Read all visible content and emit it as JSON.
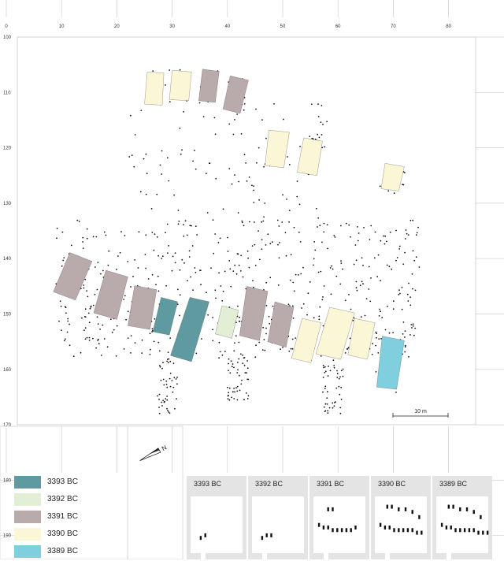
{
  "axes": {
    "x_ticks": [
      "0",
      "10",
      "20",
      "30",
      "40",
      "50",
      "60",
      "70",
      "80"
    ],
    "y_ticks": [
      "100",
      "110",
      "120",
      "130",
      "140",
      "150",
      "160",
      "170",
      "180",
      "190"
    ]
  },
  "scale_bar": {
    "label": "10 m"
  },
  "north_arrow": {
    "label": "N"
  },
  "colors": {
    "3393 BC": "#5f9aa0",
    "3392 BC": "#e3efd5",
    "3391 BC": "#b9aaac",
    "3390 BC": "#fbf6d6",
    "3389 BC": "#7fcfde"
  },
  "legend": [
    {
      "label": "3393 BC",
      "color": "#5f9aa0"
    },
    {
      "label": "3392 BC",
      "color": "#e3efd5"
    },
    {
      "label": "3391 BC",
      "color": "#b9aaac"
    },
    {
      "label": "3390 BC",
      "color": "#fbf6d6"
    },
    {
      "label": "3389 BC",
      "color": "#7fcfde"
    }
  ],
  "phases": [
    {
      "label": "3393 BC"
    },
    {
      "label": "3392 BC"
    },
    {
      "label": "3391 BC"
    },
    {
      "label": "3390 BC"
    },
    {
      "label": "3389 BC"
    }
  ],
  "houses": [
    {
      "phase": "3390 BC",
      "corners": [
        [
          25.5,
          106.3
        ],
        [
          28.5,
          106.5
        ],
        [
          28.2,
          112.3
        ],
        [
          25.0,
          112.1
        ]
      ]
    },
    {
      "phase": "3390 BC",
      "corners": [
        [
          30.0,
          106.0
        ],
        [
          33.5,
          106.3
        ],
        [
          33.0,
          111.5
        ],
        [
          29.5,
          111.3
        ]
      ]
    },
    {
      "phase": "3391 BC",
      "corners": [
        [
          35.5,
          105.8
        ],
        [
          38.5,
          106.2
        ],
        [
          37.8,
          111.8
        ],
        [
          34.8,
          111.5
        ]
      ]
    },
    {
      "phase": "3391 BC",
      "corners": [
        [
          40.5,
          107.0
        ],
        [
          43.8,
          107.8
        ],
        [
          42.3,
          113.8
        ],
        [
          39.2,
          113.0
        ]
      ]
    },
    {
      "phase": "3390 BC",
      "corners": [
        [
          47.5,
          116.8
        ],
        [
          51.2,
          117.2
        ],
        [
          50.2,
          123.6
        ],
        [
          46.8,
          123.2
        ]
      ]
    },
    {
      "phase": "3390 BC",
      "corners": [
        [
          53.8,
          118.2
        ],
        [
          57.2,
          118.8
        ],
        [
          56.2,
          125.0
        ],
        [
          52.6,
          124.4
        ]
      ]
    },
    {
      "phase": "3390 BC",
      "corners": [
        [
          68.5,
          122.8
        ],
        [
          72.0,
          123.4
        ],
        [
          71.0,
          127.8
        ],
        [
          67.8,
          127.4
        ]
      ]
    },
    {
      "phase": "3391 BC",
      "corners": [
        [
          11.5,
          138.9
        ],
        [
          15.5,
          140.5
        ],
        [
          12.5,
          147.5
        ],
        [
          8.5,
          146.0
        ]
      ]
    },
    {
      "phase": "3391 BC",
      "corners": [
        [
          18.0,
          142.1
        ],
        [
          22.0,
          143.3
        ],
        [
          20.0,
          151.0
        ],
        [
          15.8,
          149.8
        ]
      ]
    },
    {
      "phase": "3391 BC",
      "corners": [
        [
          23.2,
          144.9
        ],
        [
          27.2,
          145.6
        ],
        [
          26.0,
          152.8
        ],
        [
          22.0,
          152.1
        ]
      ]
    },
    {
      "phase": "3393 BC",
      "corners": [
        [
          28.0,
          147.0
        ],
        [
          31.0,
          147.8
        ],
        [
          29.5,
          153.8
        ],
        [
          26.5,
          153.2
        ]
      ]
    },
    {
      "phase": "3393 BC",
      "corners": [
        [
          33.2,
          147.0
        ],
        [
          36.7,
          147.8
        ],
        [
          33.5,
          158.6
        ],
        [
          29.7,
          157.5
        ]
      ]
    },
    {
      "phase": "3392 BC",
      "corners": [
        [
          39.0,
          148.5
        ],
        [
          42.0,
          149.3
        ],
        [
          40.8,
          154.4
        ],
        [
          37.8,
          153.6
        ]
      ]
    },
    {
      "phase": "3391 BC",
      "corners": [
        [
          43.5,
          145.0
        ],
        [
          47.3,
          145.9
        ],
        [
          45.8,
          154.8
        ],
        [
          42.2,
          153.9
        ]
      ]
    },
    {
      "phase": "3391 BC",
      "corners": [
        [
          48.6,
          147.8
        ],
        [
          52.0,
          148.8
        ],
        [
          50.6,
          156.0
        ],
        [
          47.3,
          155.0
        ]
      ]
    },
    {
      "phase": "3390 BC",
      "corners": [
        [
          53.5,
          150.8
        ],
        [
          57.0,
          151.6
        ],
        [
          55.1,
          158.8
        ],
        [
          51.6,
          158.0
        ]
      ]
    },
    {
      "phase": "3390 BC",
      "corners": [
        [
          58.5,
          148.8
        ],
        [
          63.0,
          149.8
        ],
        [
          60.5,
          158.2
        ],
        [
          56.0,
          157.2
        ]
      ]
    },
    {
      "phase": "3390 BC",
      "corners": [
        [
          63.0,
          150.8
        ],
        [
          66.7,
          151.6
        ],
        [
          65.3,
          158.2
        ],
        [
          61.8,
          157.4
        ]
      ]
    },
    {
      "phase": "3389 BC",
      "corners": [
        [
          68.0,
          154.0
        ],
        [
          72.0,
          154.8
        ],
        [
          70.6,
          163.6
        ],
        [
          67.0,
          163.2
        ]
      ]
    }
  ],
  "thumbnails": [
    {
      "label": "3393 BC",
      "blocks": [
        [
          3,
          14
        ],
        [
          5,
          13
        ]
      ]
    },
    {
      "label": "3392 BC",
      "blocks": [
        [
          3,
          14
        ],
        [
          5,
          13
        ],
        [
          7,
          13
        ]
      ]
    },
    {
      "label": "3391 BC",
      "blocks": [
        [
          5,
          3
        ],
        [
          7,
          3
        ],
        [
          1,
          9
        ],
        [
          3,
          10
        ],
        [
          5,
          10
        ],
        [
          7,
          11
        ],
        [
          9,
          11
        ],
        [
          11,
          11
        ],
        [
          13,
          11
        ],
        [
          15,
          11
        ],
        [
          17,
          10
        ]
      ]
    },
    {
      "label": "3390 BC",
      "blocks": [
        [
          4,
          2
        ],
        [
          6,
          2
        ],
        [
          9,
          3
        ],
        [
          12,
          3
        ],
        [
          15,
          4
        ],
        [
          18,
          6
        ],
        [
          1,
          9
        ],
        [
          3,
          10
        ],
        [
          5,
          10
        ],
        [
          7,
          11
        ],
        [
          9,
          11
        ],
        [
          11,
          11
        ],
        [
          13,
          11
        ],
        [
          15,
          11
        ],
        [
          17,
          12
        ],
        [
          19,
          12
        ]
      ]
    },
    {
      "label": "3389 BC",
      "blocks": [
        [
          4,
          2
        ],
        [
          6,
          2
        ],
        [
          9,
          3
        ],
        [
          12,
          3
        ],
        [
          15,
          4
        ],
        [
          18,
          6
        ],
        [
          1,
          9
        ],
        [
          3,
          10
        ],
        [
          5,
          10
        ],
        [
          7,
          11
        ],
        [
          9,
          11
        ],
        [
          11,
          11
        ],
        [
          13,
          11
        ],
        [
          15,
          11
        ],
        [
          17,
          12
        ],
        [
          19,
          12
        ],
        [
          21,
          12
        ]
      ]
    }
  ]
}
